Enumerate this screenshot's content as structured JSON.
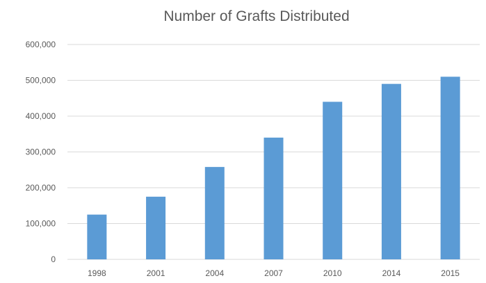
{
  "chart_data": {
    "type": "bar",
    "title": "Number of Grafts Distributed",
    "xlabel": "",
    "ylabel": "",
    "categories": [
      "1998",
      "2001",
      "2004",
      "2007",
      "2010",
      "2014",
      "2015"
    ],
    "series": [
      {
        "values": [
          125000,
          175000,
          258000,
          340000,
          440000,
          490000,
          510000
        ]
      }
    ],
    "ylim": [
      0,
      600000
    ],
    "yticks": [
      "0",
      "100,000",
      "200,000",
      "300,000",
      "400,000",
      "500,000",
      "600,000"
    ],
    "grid": true,
    "legend": "none",
    "colors": {
      "bar": "#5b9bd5",
      "grid": "#d9d9d9",
      "text": "#595959"
    }
  }
}
